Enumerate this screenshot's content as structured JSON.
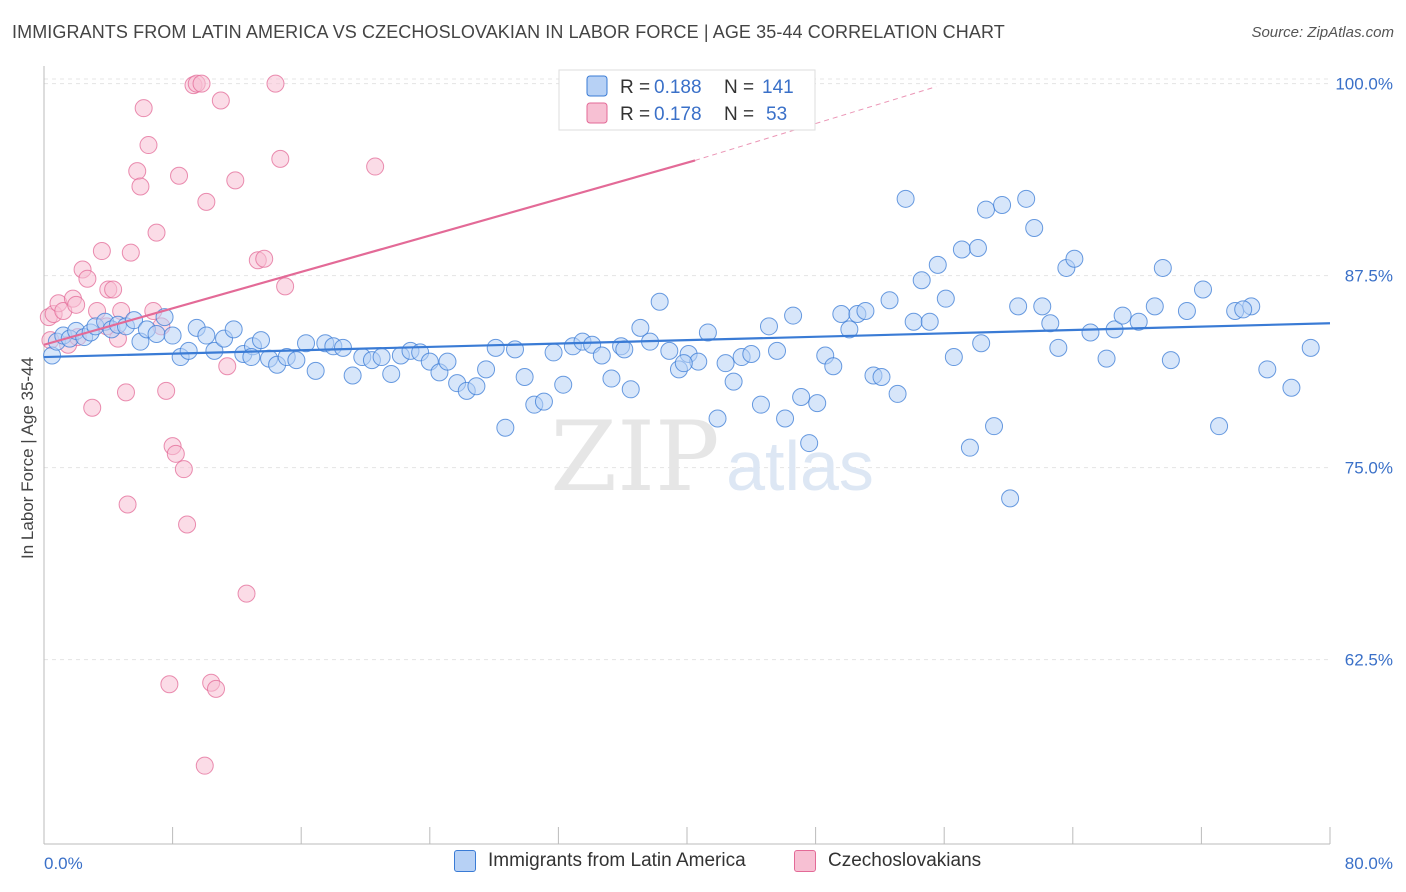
{
  "title": "IMMIGRANTS FROM LATIN AMERICA VS CZECHOSLOVAKIAN IN LABOR FORCE | AGE 35-44 CORRELATION CHART",
  "source": "Source: ZipAtlas.com",
  "watermark": {
    "zip": "ZIP",
    "atlas": "atlas"
  },
  "colors": {
    "blue": "#3a7bd5",
    "blue_fill": "#b7d1f5",
    "pink": "#e36a97",
    "pink_fill": "#f7c0d3",
    "axis_text": "#3a70c8"
  },
  "legend_top": {
    "rows": [
      {
        "r_label": "R = ",
        "r_value": "0.188",
        "n_label": "N = ",
        "n_value": "141"
      },
      {
        "r_label": "R = ",
        "r_value": "0.178",
        "n_label": "N = ",
        "n_value": "53"
      }
    ]
  },
  "legend_bottom": [
    "Immigrants from Latin America",
    "Czechoslovakians"
  ],
  "chart_data": {
    "type": "scatter",
    "title": "IMMIGRANTS FROM LATIN AMERICA VS CZECHOSLOVAKIAN IN LABOR FORCE | AGE 35-44 CORRELATION CHART",
    "xlabel": "",
    "ylabel": "In Labor Force | Age 35-44",
    "xlim": [
      0,
      80
    ],
    "ylim": [
      50.5,
      100.3
    ],
    "x_tick_labels": [
      "0.0%",
      "80.0%"
    ],
    "y_ticks": [
      62.5,
      75.0,
      87.5,
      100.0
    ],
    "y_tick_labels": [
      "62.5%",
      "75.0%",
      "87.5%",
      "100.0%"
    ],
    "grid": true,
    "legend_position": "top-center",
    "series": [
      {
        "name": "Immigrants from Latin America",
        "color": "#3a7bd5",
        "r": 0.188,
        "n": 141,
        "trend": {
          "x": [
            0,
            80
          ],
          "y": [
            82.2,
            84.4
          ]
        },
        "points": [
          [
            0.5,
            82.3
          ],
          [
            0.8,
            83.2
          ],
          [
            1.2,
            83.6
          ],
          [
            1.6,
            83.4
          ],
          [
            2.0,
            83.9
          ],
          [
            2.5,
            83.5
          ],
          [
            2.9,
            83.8
          ],
          [
            3.2,
            84.2
          ],
          [
            3.8,
            84.5
          ],
          [
            4.2,
            84.0
          ],
          [
            4.6,
            84.3
          ],
          [
            5.1,
            84.2
          ],
          [
            5.6,
            84.6
          ],
          [
            6.0,
            83.2
          ],
          [
            6.4,
            84.0
          ],
          [
            7.0,
            83.7
          ],
          [
            7.5,
            84.8
          ],
          [
            8.0,
            83.6
          ],
          [
            8.5,
            82.2
          ],
          [
            9.0,
            82.6
          ],
          [
            9.5,
            84.1
          ],
          [
            10.1,
            83.6
          ],
          [
            10.6,
            82.6
          ],
          [
            11.2,
            83.4
          ],
          [
            11.8,
            84.0
          ],
          [
            12.4,
            82.4
          ],
          [
            13.0,
            82.9
          ],
          [
            13.5,
            83.3
          ],
          [
            14.0,
            82.1
          ],
          [
            14.5,
            81.7
          ],
          [
            15.1,
            82.2
          ],
          [
            15.7,
            82.0
          ],
          [
            16.3,
            83.1
          ],
          [
            16.9,
            81.3
          ],
          [
            17.5,
            83.1
          ],
          [
            18.0,
            82.9
          ],
          [
            18.6,
            82.8
          ],
          [
            19.2,
            81.0
          ],
          [
            19.8,
            82.2
          ],
          [
            20.4,
            82.0
          ],
          [
            21.0,
            82.2
          ],
          [
            21.6,
            81.1
          ],
          [
            22.2,
            82.3
          ],
          [
            22.8,
            82.6
          ],
          [
            23.4,
            82.5
          ],
          [
            24.0,
            81.9
          ],
          [
            24.6,
            81.2
          ],
          [
            25.1,
            81.9
          ],
          [
            25.7,
            80.5
          ],
          [
            26.3,
            80.0
          ],
          [
            26.9,
            80.3
          ],
          [
            27.5,
            81.4
          ],
          [
            28.1,
            82.8
          ],
          [
            28.7,
            77.6
          ],
          [
            29.3,
            82.7
          ],
          [
            29.9,
            80.9
          ],
          [
            30.5,
            79.1
          ],
          [
            31.1,
            79.3
          ],
          [
            31.7,
            82.5
          ],
          [
            32.3,
            80.4
          ],
          [
            32.9,
            82.9
          ],
          [
            33.5,
            83.2
          ],
          [
            34.1,
            83.0
          ],
          [
            34.7,
            82.3
          ],
          [
            35.3,
            80.8
          ],
          [
            35.9,
            82.9
          ],
          [
            36.5,
            80.1
          ],
          [
            37.1,
            84.1
          ],
          [
            37.7,
            83.2
          ],
          [
            38.3,
            85.8
          ],
          [
            38.9,
            82.6
          ],
          [
            39.5,
            81.4
          ],
          [
            40.1,
            82.4
          ],
          [
            40.7,
            81.9
          ],
          [
            41.3,
            83.8
          ],
          [
            41.9,
            78.2
          ],
          [
            42.4,
            81.8
          ],
          [
            42.9,
            80.6
          ],
          [
            43.4,
            82.2
          ],
          [
            44.0,
            82.4
          ],
          [
            44.6,
            79.1
          ],
          [
            45.1,
            84.2
          ],
          [
            45.6,
            82.6
          ],
          [
            46.1,
            78.2
          ],
          [
            46.6,
            84.9
          ],
          [
            47.1,
            79.6
          ],
          [
            47.6,
            76.6
          ],
          [
            48.1,
            79.2
          ],
          [
            48.6,
            82.3
          ],
          [
            49.1,
            81.6
          ],
          [
            49.6,
            85.0
          ],
          [
            50.1,
            84.0
          ],
          [
            50.6,
            85.0
          ],
          [
            51.1,
            85.2
          ],
          [
            51.6,
            81.0
          ],
          [
            52.1,
            80.9
          ],
          [
            52.6,
            85.9
          ],
          [
            53.1,
            79.8
          ],
          [
            53.6,
            92.5
          ],
          [
            54.1,
            84.5
          ],
          [
            54.6,
            87.2
          ],
          [
            55.1,
            84.5
          ],
          [
            55.6,
            88.2
          ],
          [
            56.1,
            86.0
          ],
          [
            56.6,
            82.2
          ],
          [
            57.1,
            89.2
          ],
          [
            57.6,
            76.3
          ],
          [
            58.1,
            89.3
          ],
          [
            58.6,
            91.8
          ],
          [
            59.1,
            77.7
          ],
          [
            59.6,
            92.1
          ],
          [
            60.1,
            73.0
          ],
          [
            60.6,
            85.5
          ],
          [
            61.1,
            92.5
          ],
          [
            61.6,
            90.6
          ],
          [
            62.1,
            85.5
          ],
          [
            62.6,
            84.4
          ],
          [
            63.1,
            82.8
          ],
          [
            63.6,
            88.0
          ],
          [
            64.1,
            88.6
          ],
          [
            65.1,
            83.8
          ],
          [
            66.1,
            82.1
          ],
          [
            66.6,
            84.0
          ],
          [
            67.1,
            84.9
          ],
          [
            68.1,
            84.5
          ],
          [
            69.1,
            85.5
          ],
          [
            69.6,
            88.0
          ],
          [
            70.1,
            82.0
          ],
          [
            71.1,
            85.2
          ],
          [
            72.1,
            86.6
          ],
          [
            73.1,
            77.7
          ],
          [
            74.1,
            85.2
          ],
          [
            75.1,
            85.5
          ],
          [
            74.6,
            85.3
          ],
          [
            76.1,
            81.4
          ],
          [
            77.6,
            80.2
          ],
          [
            78.8,
            82.8
          ],
          [
            39.8,
            81.8
          ],
          [
            36.1,
            82.7
          ],
          [
            12.9,
            82.2
          ],
          [
            58.3,
            83.1
          ]
        ]
      },
      {
        "name": "Czechoslovakians",
        "color": "#e36a97",
        "r": 0.178,
        "n": 53,
        "trend_solid": {
          "x": [
            0,
            40.5
          ],
          "y": [
            83.0,
            95.0
          ]
        },
        "trend_dashed": {
          "x": [
            40.5,
            55.5
          ],
          "y": [
            95.0,
            99.8
          ]
        },
        "points": [
          [
            0.3,
            84.8
          ],
          [
            0.6,
            85.0
          ],
          [
            0.9,
            85.7
          ],
          [
            1.2,
            85.2
          ],
          [
            1.5,
            83.0
          ],
          [
            1.8,
            86.0
          ],
          [
            2.1,
            83.5
          ],
          [
            2.4,
            87.9
          ],
          [
            2.7,
            87.3
          ],
          [
            3.0,
            78.9
          ],
          [
            3.3,
            85.2
          ],
          [
            3.6,
            89.1
          ],
          [
            4.0,
            86.6
          ],
          [
            4.3,
            86.6
          ],
          [
            4.6,
            83.4
          ],
          [
            4.8,
            85.2
          ],
          [
            5.1,
            79.9
          ],
          [
            5.2,
            72.6
          ],
          [
            5.4,
            89.0
          ],
          [
            5.8,
            94.3
          ],
          [
            6.0,
            93.3
          ],
          [
            6.2,
            98.4
          ],
          [
            6.5,
            96.0
          ],
          [
            6.8,
            85.2
          ],
          [
            7.0,
            90.3
          ],
          [
            7.3,
            84.2
          ],
          [
            7.6,
            80.0
          ],
          [
            7.8,
            60.9
          ],
          [
            8.0,
            76.4
          ],
          [
            8.2,
            75.9
          ],
          [
            8.4,
            94.0
          ],
          [
            8.7,
            74.9
          ],
          [
            8.9,
            71.3
          ],
          [
            9.3,
            99.9
          ],
          [
            9.5,
            100.0
          ],
          [
            9.8,
            100.0
          ],
          [
            10.1,
            92.3
          ],
          [
            10.4,
            61.0
          ],
          [
            10.7,
            60.6
          ],
          [
            11.0,
            98.9
          ],
          [
            11.4,
            81.6
          ],
          [
            11.9,
            93.7
          ],
          [
            12.6,
            66.8
          ],
          [
            13.3,
            88.5
          ],
          [
            13.7,
            88.6
          ],
          [
            14.4,
            100.0
          ],
          [
            14.7,
            95.1
          ],
          [
            15.0,
            86.8
          ],
          [
            10.0,
            55.6
          ],
          [
            20.6,
            94.6
          ],
          [
            2.0,
            85.6
          ],
          [
            3.9,
            84.2
          ],
          [
            0.4,
            83.3
          ]
        ]
      }
    ]
  }
}
